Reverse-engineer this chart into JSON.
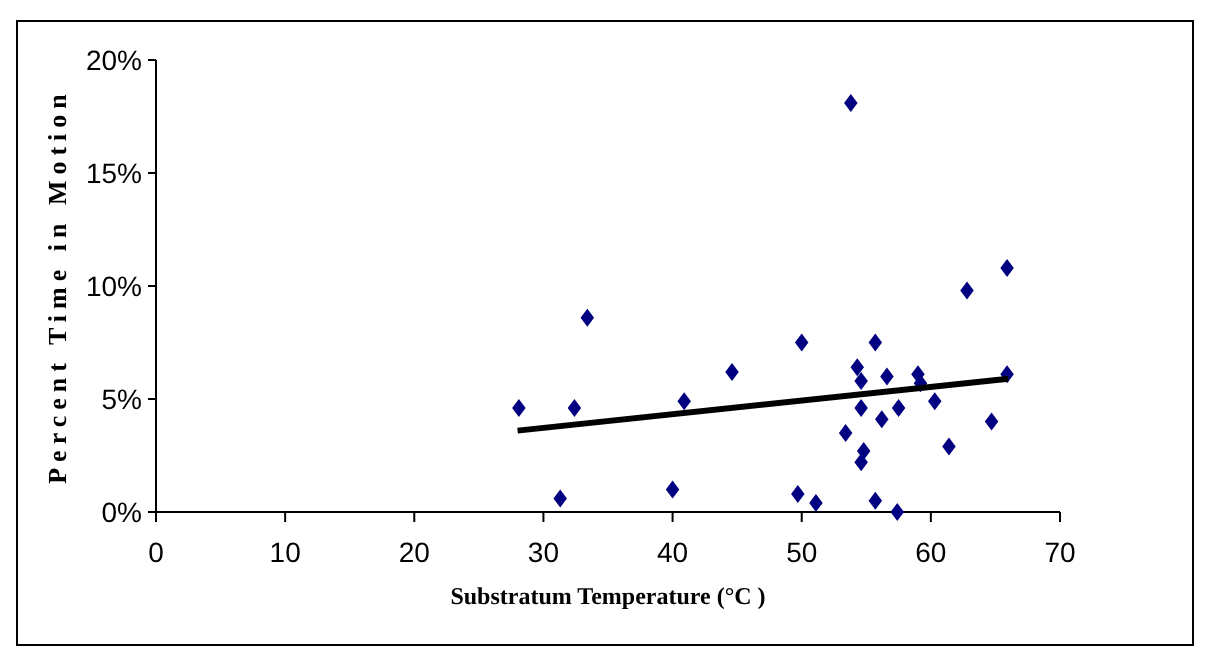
{
  "chart_data": {
    "type": "scatter",
    "xlabel": "Substratum Temperature (°C )",
    "ylabel": "Percent Time in Motion",
    "xlim": [
      0,
      70
    ],
    "xticks": [
      0,
      10,
      20,
      30,
      40,
      50,
      60,
      70
    ],
    "ylim": [
      0,
      20
    ],
    "yticks": [
      {
        "value": 0,
        "label": "0%"
      },
      {
        "value": 5,
        "label": "5%"
      },
      {
        "value": 10,
        "label": "10%"
      },
      {
        "value": 15,
        "label": "15%"
      },
      {
        "value": 20,
        "label": "20%"
      }
    ],
    "grid": false,
    "marker": "diamond",
    "series": [
      {
        "color": "#000080",
        "x": [
          28.1,
          31.3,
          32.4,
          33.4,
          40.0,
          40.9,
          44.6,
          49.7,
          50.0,
          51.1,
          53.4,
          53.8,
          54.3,
          54.6,
          54.6,
          54.8,
          54.6,
          55.7,
          55.7,
          56.2,
          56.6,
          57.4,
          57.5,
          59.0,
          59.2,
          60.3,
          61.4,
          62.8,
          64.7,
          65.9,
          65.9
        ],
        "values": [
          4.6,
          0.6,
          4.6,
          8.6,
          1.0,
          4.9,
          6.2,
          0.8,
          7.5,
          0.4,
          3.5,
          18.1,
          6.4,
          5.8,
          4.6,
          2.7,
          2.2,
          7.5,
          0.5,
          4.1,
          6.0,
          0.0,
          4.6,
          6.1,
          5.7,
          4.9,
          2.9,
          9.8,
          4.0,
          10.8,
          6.1
        ]
      },
      {
        "type": "line",
        "color": "#000000",
        "marker": "none",
        "line_style": "solid",
        "x": [
          28,
          66
        ],
        "values": [
          3.6,
          5.9
        ]
      }
    ]
  }
}
